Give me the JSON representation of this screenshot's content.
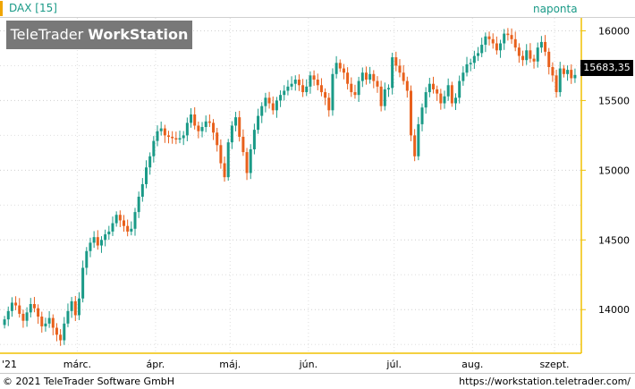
{
  "header": {
    "symbol": "DAX [15]",
    "period": "naponta"
  },
  "brand": {
    "light": "TeleTrader ",
    "bold": "WorkStation"
  },
  "last_price": "15683,35",
  "footer": {
    "copyright": "© 2021  TeleTrader Software GmbH",
    "url": "https://workstation.teletrader.com/"
  },
  "colors": {
    "up": "#1a9a87",
    "down": "#e8601c",
    "axis": "#f0c000",
    "brand_box": "#787878"
  },
  "chart_data": {
    "type": "candlestick",
    "title": "DAX [15]",
    "period": "naponta",
    "ylim": [
      13700,
      16080
    ],
    "yticks": [
      14000,
      14500,
      15000,
      15500,
      16000
    ],
    "ytick_labels": [
      "14000",
      "14500",
      "15000",
      "15500",
      "16000"
    ],
    "x_labels": [
      "'21",
      "márc.",
      "ápr.",
      "máj.",
      "jún.",
      "júl.",
      "aug.",
      "szept."
    ],
    "x_label_positions": [
      0,
      20,
      41,
      61,
      82,
      105,
      126,
      148
    ],
    "grid": true,
    "last_value": 15683.35,
    "closes": [
      13930,
      13990,
      14050,
      14030,
      13970,
      13920,
      13980,
      14040,
      14010,
      13950,
      13880,
      13900,
      13940,
      13870,
      13820,
      13780,
      13900,
      13990,
      14060,
      13960,
      14080,
      14300,
      14420,
      14480,
      14520,
      14460,
      14500,
      14540,
      14560,
      14620,
      14680,
      14640,
      14600,
      14560,
      14580,
      14700,
      14810,
      14900,
      15020,
      15100,
      15210,
      15280,
      15300,
      15250,
      15240,
      15230,
      15220,
      15230,
      15250,
      15340,
      15400,
      15320,
      15280,
      15310,
      15350,
      15340,
      15270,
      15180,
      15050,
      14950,
      15200,
      15320,
      15380,
      15240,
      15130,
      14980,
      15150,
      15290,
      15390,
      15460,
      15520,
      15480,
      15430,
      15500,
      15540,
      15570,
      15600,
      15620,
      15650,
      15610,
      15560,
      15600,
      15680,
      15650,
      15610,
      15560,
      15520,
      15430,
      15690,
      15770,
      15730,
      15700,
      15620,
      15560,
      15540,
      15640,
      15700,
      15650,
      15690,
      15640,
      15600,
      15460,
      15580,
      15590,
      15810,
      15750,
      15700,
      15640,
      15570,
      15250,
      15100,
      15330,
      15450,
      15560,
      15620,
      15580,
      15550,
      15480,
      15530,
      15610,
      15480,
      15520,
      15640,
      15700,
      15760,
      15770,
      15820,
      15840,
      15900,
      15960,
      15940,
      15910,
      15860,
      15910,
      15980,
      15970,
      15940,
      15880,
      15820,
      15790,
      15860,
      15800,
      15780,
      15880,
      15920,
      15850,
      15740,
      15680,
      15560,
      15730,
      15690,
      15720,
      15660,
      15683.35
    ]
  }
}
